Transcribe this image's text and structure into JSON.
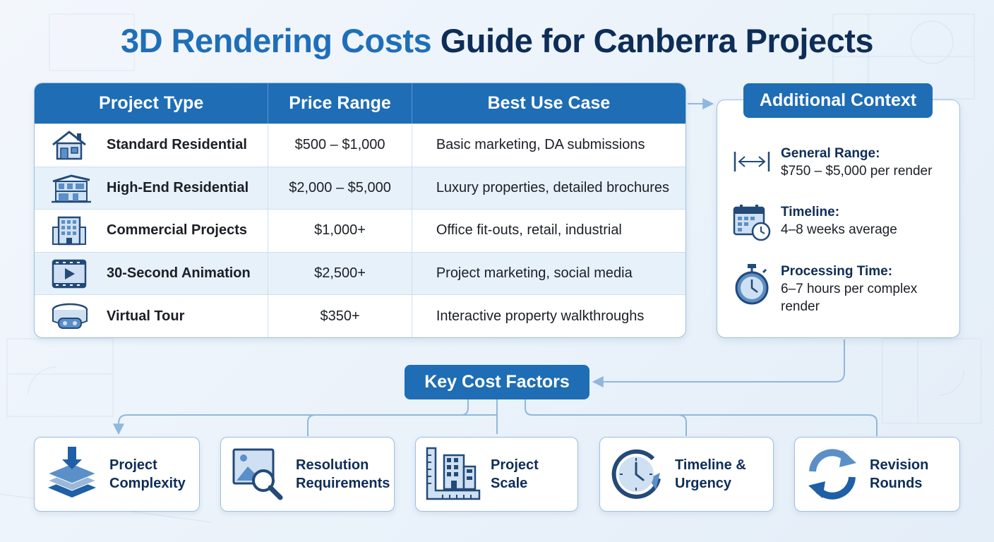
{
  "title": {
    "part1": "3D Rendering Costs",
    "part2": "Guide for Canberra Projects"
  },
  "table": {
    "headers": [
      "Project Type",
      "Price Range",
      "Best Use Case"
    ],
    "rows": [
      {
        "icon": "house-icon",
        "type": "Standard Residential",
        "price": "$500 – $1,000",
        "use": "Basic marketing, DA submissions"
      },
      {
        "icon": "modern-home-icon",
        "type": "High-End Residential",
        "price": "$2,000 – $5,000",
        "use": "Luxury properties, detailed brochures"
      },
      {
        "icon": "office-building-icon",
        "type": "Commercial Projects",
        "price": "$1,000+",
        "use": "Office fit-outs, retail, industrial"
      },
      {
        "icon": "video-play-icon",
        "type": "30-Second Animation",
        "price": "$2,500+",
        "use": "Project marketing, social media"
      },
      {
        "icon": "vr-headset-icon",
        "type": "Virtual Tour",
        "price": "$350+",
        "use": "Interactive property walkthroughs"
      }
    ]
  },
  "context": {
    "heading": "Additional Context",
    "items": [
      {
        "icon": "range-arrows-icon",
        "label": "General Range:",
        "text": "$750 – $5,000 per render"
      },
      {
        "icon": "calendar-clock-icon",
        "label": "Timeline:",
        "text": "4–8 weeks average"
      },
      {
        "icon": "stopwatch-icon",
        "label": "Processing Time:",
        "text": "6–7 hours per complex render"
      }
    ]
  },
  "factors": {
    "heading": "Key Cost Factors",
    "items": [
      {
        "icon": "layers-icon",
        "line1": "Project",
        "line2": "Complexity"
      },
      {
        "icon": "image-magnifier-icon",
        "line1": "Resolution",
        "line2": "Requirements"
      },
      {
        "icon": "building-ruler-icon",
        "line1": "Project",
        "line2": "Scale"
      },
      {
        "icon": "clock-arrow-icon",
        "line1": "Timeline &",
        "line2": "Urgency"
      },
      {
        "icon": "refresh-arrows-icon",
        "line1": "Revision",
        "line2": "Rounds"
      }
    ]
  },
  "colors": {
    "primary": "#1e6db5",
    "navy": "#0e2d57",
    "title_blue": "#1f6fb8",
    "row_alt": "#e7f1fa",
    "border": "#9fbfe0"
  }
}
